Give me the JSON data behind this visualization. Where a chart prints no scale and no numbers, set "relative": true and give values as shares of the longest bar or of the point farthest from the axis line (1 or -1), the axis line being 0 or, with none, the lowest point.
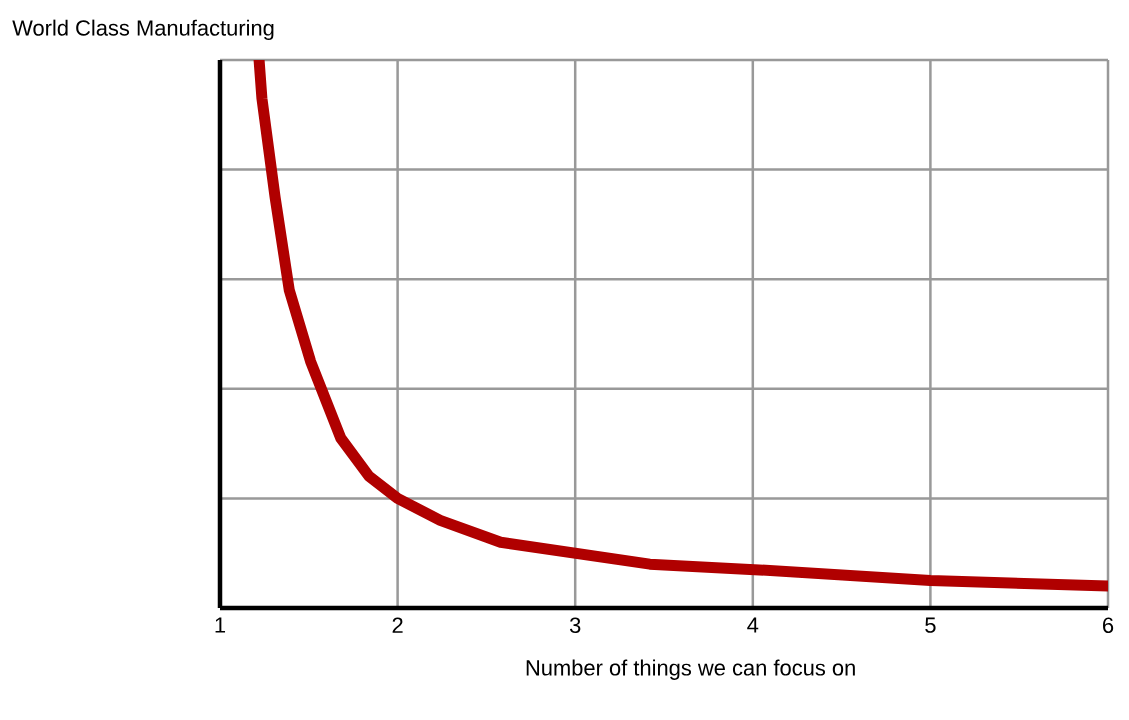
{
  "chart_data": {
    "type": "line",
    "ylabel": "World Class Manufacturing",
    "xlabel": "Number of things we can focus on",
    "x": [
      1.22,
      1.236,
      1.31,
      1.39,
      1.51,
      1.68,
      1.84,
      2.0,
      2.24,
      2.58,
      3.0,
      3.42,
      4.01,
      5.0,
      6.0
    ],
    "series": [
      {
        "color": "#b00000",
        "values": [
          1.0,
          0.93,
          0.75,
          0.58,
          0.45,
          0.31,
          0.24,
          0.2,
          0.16,
          0.12,
          0.1,
          0.08,
          0.07,
          0.05,
          0.04
        ]
      }
    ],
    "relative": true,
    "xlim": [
      1,
      6
    ],
    "xticks": [
      1,
      2,
      3,
      4,
      5,
      6
    ],
    "grid": true,
    "tick_labels": "x"
  }
}
